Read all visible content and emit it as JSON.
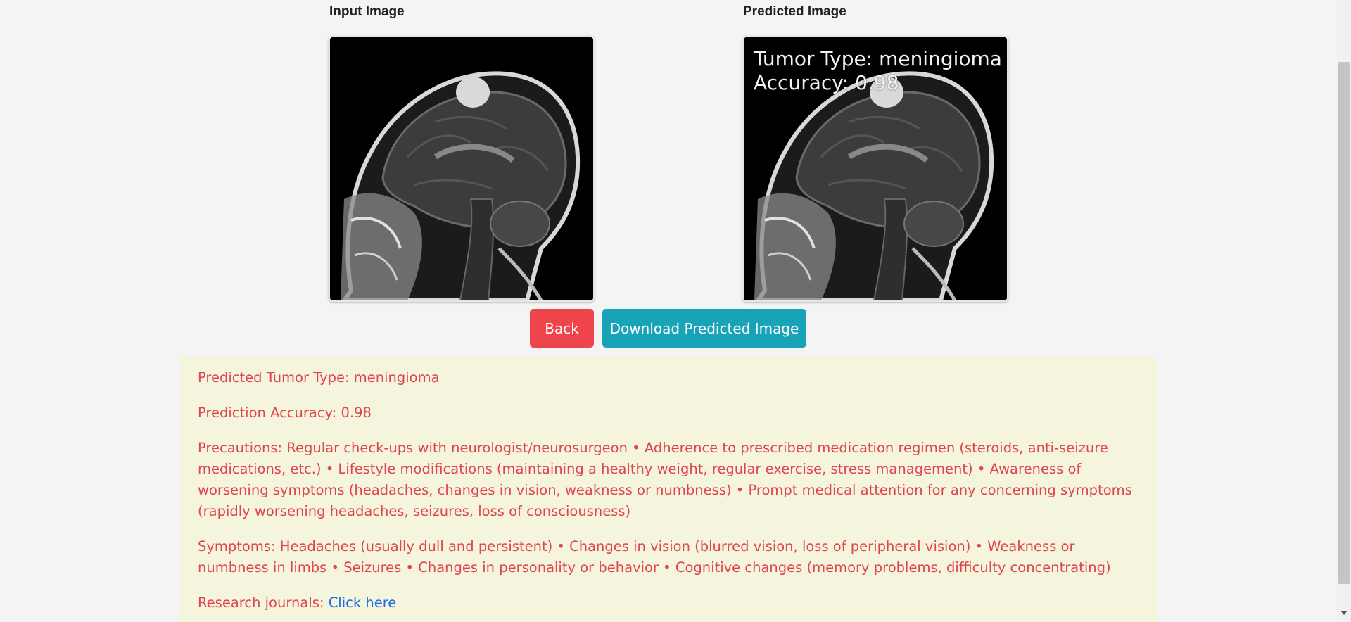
{
  "input_image": {
    "label": "Input Image"
  },
  "predicted_image": {
    "label": "Predicted Image",
    "overlay_line1": "Tumor Type: meningioma",
    "overlay_line2": "Accuracy: 0.98"
  },
  "buttons": {
    "back_label": "Back",
    "download_label": "Download Predicted Image"
  },
  "info": {
    "tumor_type_text": "Predicted Tumor Type: meningioma",
    "accuracy_text": "Prediction Accuracy: 0.98",
    "precautions_text": "Precautions: Regular check-ups with neurologist/neurosurgeon • Adherence to prescribed medication regimen (steroids, anti-seizure medications, etc.) • Lifestyle modifications (maintaining a healthy weight, regular exercise, stress management) • Awareness of worsening symptoms (headaches, changes in vision, weakness or numbness) • Prompt medical attention for any concerning symptoms (rapidly worsening headaches, seizures, loss of consciousness)",
    "symptoms_text": "Symptoms: Headaches (usually dull and persistent) • Changes in vision (blurred vision, loss of peripheral vision) • Weakness or numbness in limbs • Seizures • Changes in personality or behavior • Cognitive changes (memory problems, difficulty concentrating)",
    "journals_prefix": "Research journals: ",
    "journals_link": "Click here"
  },
  "colors": {
    "back_button": "#f0444c",
    "download_button": "#19a3b8",
    "info_background": "#f5f4dc",
    "info_text": "#e0454d",
    "link": "#1a6fe0"
  },
  "icons": {
    "scroll_down": "scroll-down-arrow-icon"
  }
}
